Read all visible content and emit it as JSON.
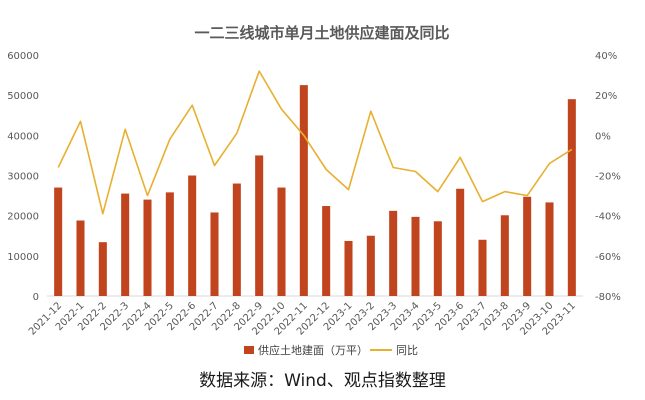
{
  "chart_data": {
    "type": "bar",
    "title": "一二三线城市单月土地供应建面及同比",
    "categories": [
      "2021-12",
      "2022-1",
      "2022-2",
      "2022-3",
      "2022-4",
      "2022-5",
      "2022-6",
      "2022-7",
      "2022-8",
      "2022-9",
      "2022-10",
      "2022-11",
      "2022-12",
      "2023-1",
      "2023-2",
      "2023-3",
      "2023-4",
      "2023-5",
      "2023-6",
      "2023-7",
      "2023-8",
      "2023-9",
      "2023-10",
      "2023-11"
    ],
    "series": [
      {
        "name": "供应土地建面（万平）",
        "type": "bar",
        "axis": "left",
        "color": "#c0451f",
        "values": [
          27000,
          18800,
          13400,
          25500,
          24000,
          25800,
          30000,
          20800,
          28000,
          35000,
          27000,
          52500,
          22400,
          13700,
          15000,
          21200,
          19700,
          18600,
          26700,
          14000,
          20100,
          24700,
          23300,
          49000
        ]
      },
      {
        "name": "同比",
        "type": "line",
        "axis": "right",
        "color": "#e8b030",
        "values": [
          -16,
          7,
          -39,
          3,
          -30,
          -2,
          15,
          -15,
          1,
          32,
          13,
          0,
          -17,
          -27,
          12,
          -16,
          -18,
          -28,
          -11,
          -33,
          -28,
          -30,
          -14,
          -7
        ]
      }
    ],
    "y_left": {
      "min": 0,
      "max": 60000,
      "step": 10000,
      "tick_labels": [
        "0",
        "10000",
        "20000",
        "30000",
        "40000",
        "50000",
        "60000"
      ]
    },
    "y_right": {
      "min": -80,
      "max": 40,
      "step": 20,
      "tick_labels": [
        "-80%",
        "-60%",
        "-40%",
        "-20%",
        "0%",
        "20%",
        "40%"
      ]
    },
    "legend_position": "bottom",
    "grid": false
  },
  "source_text": "数据来源：Wind、观点指数整理"
}
